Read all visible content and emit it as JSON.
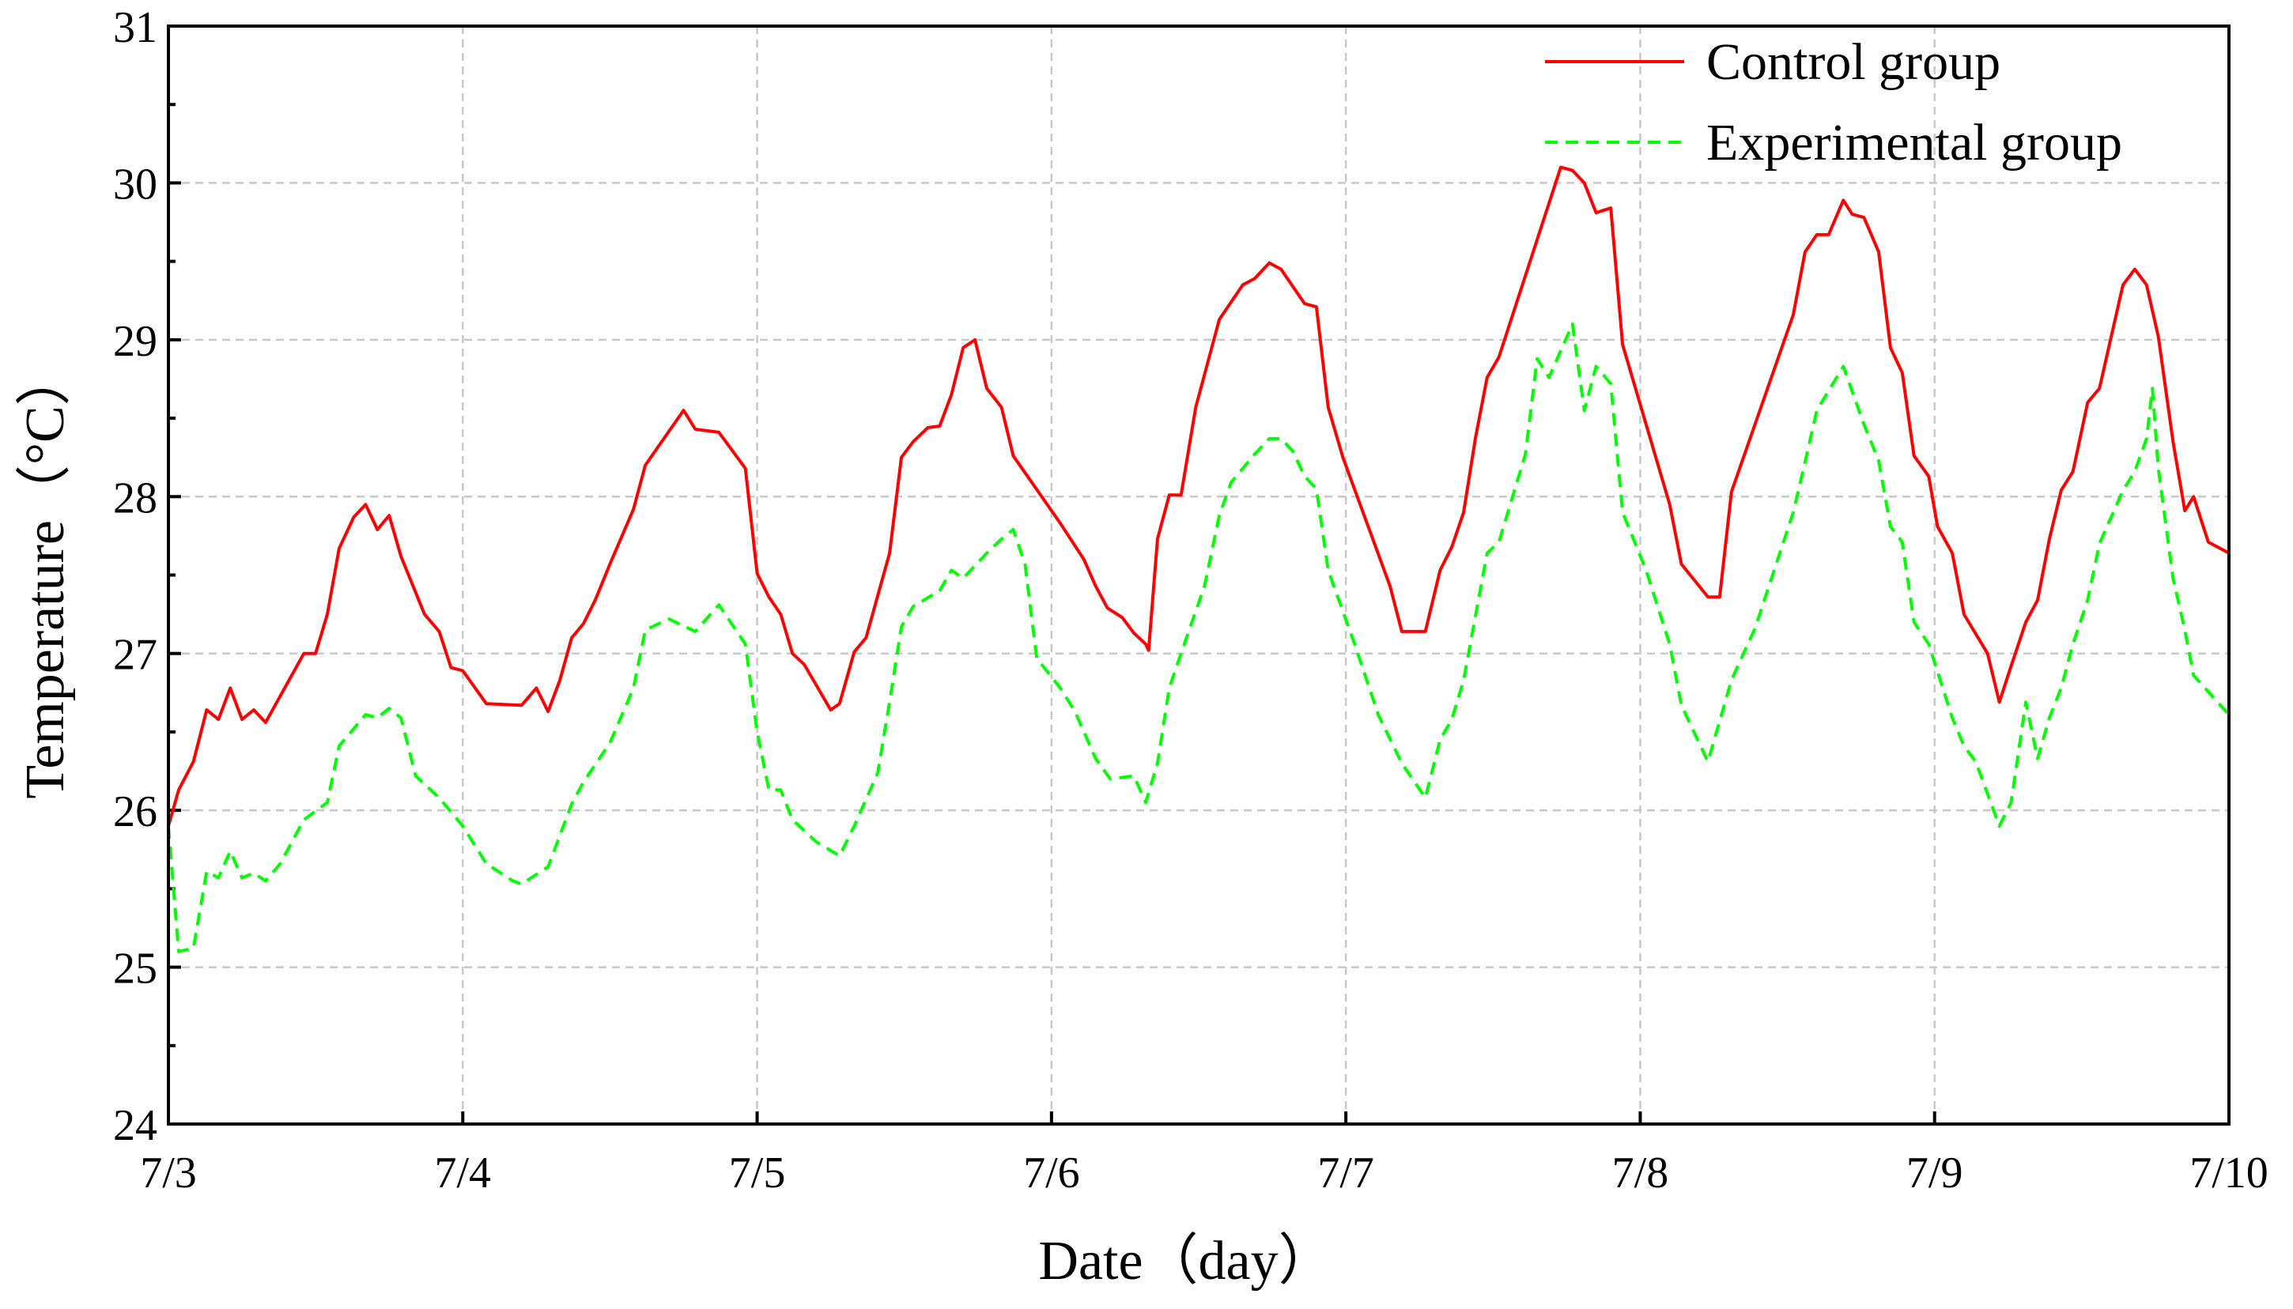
{
  "chart_data": {
    "type": "line",
    "x_label": "Date（day）",
    "y_label": "Temperature（°C）",
    "xlim": [
      0,
      7
    ],
    "ylim": [
      24,
      31
    ],
    "xticks": [
      {
        "value": 0,
        "label": "7/3"
      },
      {
        "value": 1,
        "label": "7/4"
      },
      {
        "value": 2,
        "label": "7/5"
      },
      {
        "value": 3,
        "label": "7/6"
      },
      {
        "value": 4,
        "label": "7/7"
      },
      {
        "value": 5,
        "label": "7/8"
      },
      {
        "value": 6,
        "label": "7/9"
      },
      {
        "value": 7,
        "label": "7/10"
      }
    ],
    "yticks": [
      24,
      25,
      26,
      27,
      28,
      29,
      30,
      31
    ],
    "grid": true,
    "legend": "upper right",
    "series": [
      {
        "name": "Control group",
        "color": "#ff0000",
        "dash": "solid",
        "x": [
          0,
          0.035,
          0.085,
          0.13,
          0.17,
          0.21,
          0.25,
          0.29,
          0.33,
          0.46,
          0.5,
          0.54,
          0.58,
          0.63,
          0.67,
          0.71,
          0.75,
          0.79,
          0.87,
          0.92,
          0.96,
          1.0,
          1.08,
          1.2,
          1.25,
          1.29,
          1.33,
          1.37,
          1.41,
          1.45,
          1.5,
          1.58,
          1.62,
          1.75,
          1.79,
          1.87,
          1.96,
          2.0,
          2.04,
          2.08,
          2.12,
          2.16,
          2.25,
          2.28,
          2.33,
          2.37,
          2.45,
          2.49,
          2.53,
          2.58,
          2.62,
          2.66,
          2.7,
          2.74,
          2.78,
          2.83,
          2.87,
          3.03,
          3.11,
          3.15,
          3.19,
          3.24,
          3.28,
          3.32,
          3.33,
          3.36,
          3.4,
          3.44,
          3.49,
          3.57,
          3.65,
          3.69,
          3.74,
          3.78,
          3.86,
          3.9,
          3.94,
          3.99,
          4.15,
          4.19,
          4.27,
          4.32,
          4.36,
          4.4,
          4.44,
          4.48,
          4.52,
          4.73,
          4.77,
          4.81,
          4.85,
          4.9,
          4.94,
          5.1,
          5.14,
          5.23,
          5.27,
          5.31,
          5.52,
          5.56,
          5.6,
          5.64,
          5.69,
          5.72,
          5.76,
          5.81,
          5.85,
          5.89,
          5.93,
          5.98,
          6.01,
          6.06,
          6.1,
          6.18,
          6.22,
          6.26,
          6.31,
          6.35,
          6.39,
          6.43,
          6.47,
          6.52,
          6.56,
          6.64,
          6.68,
          6.72,
          6.76,
          6.81,
          6.85,
          6.88,
          6.93,
          7.0
        ],
        "values": [
          25.9,
          26.13,
          26.31,
          26.64,
          26.58,
          26.78,
          26.58,
          26.64,
          26.56,
          27.0,
          27.0,
          27.25,
          27.67,
          27.87,
          27.95,
          27.79,
          27.88,
          27.62,
          27.25,
          27.14,
          26.91,
          26.89,
          26.68,
          26.67,
          26.78,
          26.63,
          26.83,
          27.1,
          27.19,
          27.34,
          27.57,
          27.92,
          28.2,
          28.55,
          28.43,
          28.41,
          28.18,
          27.51,
          27.36,
          27.25,
          27.0,
          26.93,
          26.64,
          26.68,
          27.01,
          27.1,
          27.64,
          28.25,
          28.35,
          28.44,
          28.45,
          28.65,
          28.95,
          29.0,
          28.69,
          28.57,
          28.26,
          27.83,
          27.6,
          27.43,
          27.29,
          27.23,
          27.13,
          27.06,
          27.02,
          27.73,
          28.01,
          28.01,
          28.57,
          29.13,
          29.35,
          29.39,
          29.49,
          29.45,
          29.23,
          29.21,
          28.57,
          28.25,
          27.43,
          27.14,
          27.14,
          27.53,
          27.68,
          27.9,
          28.37,
          28.76,
          28.89,
          30.1,
          30.08,
          30.0,
          29.81,
          29.84,
          28.97,
          27.95,
          27.57,
          27.36,
          27.36,
          28.03,
          29.16,
          29.56,
          29.67,
          29.67,
          29.89,
          29.8,
          29.78,
          29.56,
          28.95,
          28.79,
          28.26,
          28.13,
          27.81,
          27.64,
          27.25,
          27.0,
          26.69,
          26.92,
          27.2,
          27.34,
          27.73,
          28.04,
          28.16,
          28.6,
          28.69,
          29.35,
          29.45,
          29.35,
          29.02,
          28.35,
          27.91,
          28.0,
          27.71,
          27.64
        ]
      },
      {
        "name": "Experimental group",
        "color": "#00ff00",
        "dash": "dashed",
        "x": [
          0,
          0.035,
          0.085,
          0.13,
          0.17,
          0.21,
          0.25,
          0.29,
          0.33,
          0.38,
          0.46,
          0.54,
          0.58,
          0.67,
          0.71,
          0.75,
          0.79,
          0.84,
          0.92,
          1.0,
          1.08,
          1.17,
          1.2,
          1.29,
          1.37,
          1.41,
          1.5,
          1.58,
          1.62,
          1.7,
          1.79,
          1.87,
          1.96,
          2.0,
          2.04,
          2.08,
          2.12,
          2.2,
          2.28,
          2.33,
          2.41,
          2.45,
          2.49,
          2.53,
          2.62,
          2.66,
          2.7,
          2.78,
          2.83,
          2.87,
          2.91,
          2.95,
          3.03,
          3.08,
          3.15,
          3.2,
          3.28,
          3.32,
          3.36,
          3.4,
          3.44,
          3.52,
          3.57,
          3.61,
          3.65,
          3.69,
          3.74,
          3.78,
          3.82,
          3.86,
          3.9,
          3.94,
          4.03,
          4.11,
          4.19,
          4.27,
          4.32,
          4.36,
          4.4,
          4.48,
          4.52,
          4.61,
          4.65,
          4.69,
          4.73,
          4.77,
          4.81,
          4.85,
          4.9,
          4.94,
          5.02,
          5.1,
          5.14,
          5.23,
          5.31,
          5.39,
          5.52,
          5.56,
          5.6,
          5.69,
          5.76,
          5.81,
          5.85,
          5.89,
          5.93,
          5.98,
          6.06,
          6.1,
          6.14,
          6.22,
          6.26,
          6.31,
          6.35,
          6.39,
          6.43,
          6.47,
          6.52,
          6.56,
          6.64,
          6.68,
          6.72,
          6.74,
          6.76,
          6.81,
          6.85,
          6.88,
          7.0
        ],
        "values": [
          25.9,
          25.1,
          25.12,
          25.61,
          25.57,
          25.74,
          25.57,
          25.6,
          25.55,
          25.66,
          25.94,
          26.05,
          26.41,
          26.61,
          26.59,
          26.65,
          26.59,
          26.22,
          26.08,
          25.9,
          25.66,
          25.55,
          25.53,
          25.64,
          26.04,
          26.18,
          26.43,
          26.78,
          27.15,
          27.22,
          27.14,
          27.31,
          27.06,
          26.5,
          26.13,
          26.13,
          25.94,
          25.8,
          25.71,
          25.9,
          26.24,
          26.69,
          27.17,
          27.3,
          27.4,
          27.53,
          27.48,
          27.64,
          27.73,
          27.79,
          27.57,
          26.97,
          26.78,
          26.63,
          26.33,
          26.2,
          26.22,
          26.05,
          26.3,
          26.78,
          27.0,
          27.43,
          27.88,
          28.09,
          28.18,
          28.27,
          28.37,
          28.37,
          28.29,
          28.13,
          28.05,
          27.53,
          27.06,
          26.61,
          26.3,
          26.08,
          26.45,
          26.58,
          26.83,
          27.64,
          27.71,
          28.27,
          28.88,
          28.76,
          28.93,
          29.1,
          28.55,
          28.83,
          28.72,
          27.9,
          27.53,
          27.06,
          26.67,
          26.31,
          26.83,
          27.16,
          27.9,
          28.22,
          28.55,
          28.83,
          28.46,
          28.23,
          27.81,
          27.71,
          27.2,
          27.06,
          26.59,
          26.41,
          26.31,
          25.9,
          26.05,
          26.69,
          26.33,
          26.59,
          26.78,
          27.06,
          27.34,
          27.7,
          28.04,
          28.16,
          28.37,
          28.69,
          28.18,
          27.48,
          27.15,
          26.86,
          26.61
        ]
      }
    ]
  }
}
